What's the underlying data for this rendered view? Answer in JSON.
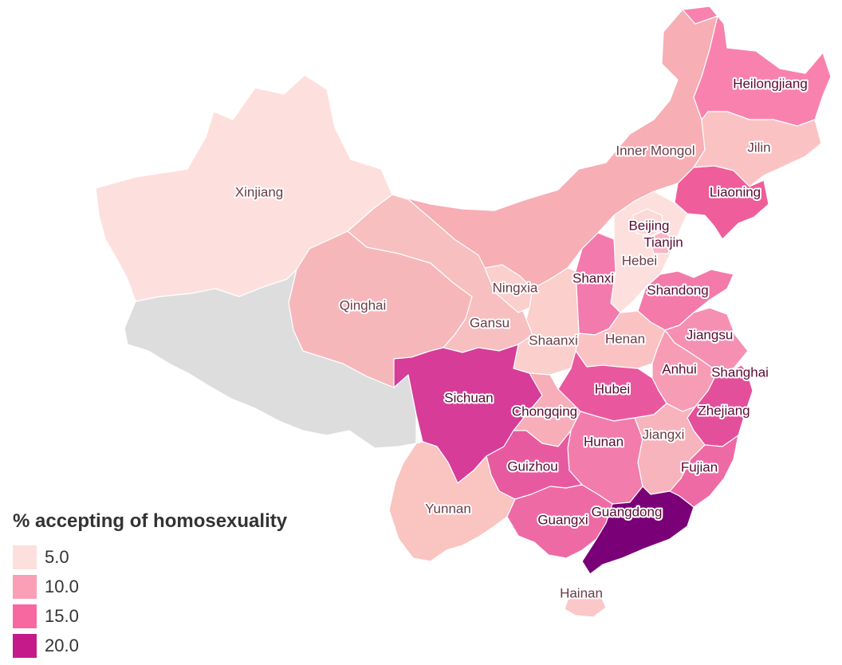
{
  "legend": {
    "title": "% accepting of homosexuality",
    "items": [
      {
        "label": "5.0",
        "color": "#fde0dd"
      },
      {
        "label": "10.0",
        "color": "#fa9fb5"
      },
      {
        "label": "15.0",
        "color": "#f768a1"
      },
      {
        "label": "20.0",
        "color": "#c51b8a"
      }
    ]
  },
  "no_data_color": "#dddddd",
  "provinces": [
    {
      "id": "xinjiang",
      "label": "Xinjiang",
      "color": "#fde0dd"
    },
    {
      "id": "tibet",
      "label": "",
      "color": "#dddddd"
    },
    {
      "id": "qinghai",
      "label": "Qinghai",
      "color": "#f6b7bb"
    },
    {
      "id": "gansu",
      "label": "Gansu",
      "color": "#f7bfc0"
    },
    {
      "id": "ningxia",
      "label": "Ningxia",
      "color": "#fbcfcc"
    },
    {
      "id": "inner-mongol",
      "label": "Inner Mongol",
      "color": "#f7aeb4"
    },
    {
      "id": "heilongjiang",
      "label": "Heilongjiang",
      "color": "#f882ad"
    },
    {
      "id": "jilin",
      "label": "Jilin",
      "color": "#fbc2c4"
    },
    {
      "id": "liaoning",
      "label": "Liaoning",
      "color": "#ef5d9a"
    },
    {
      "id": "beijing",
      "label": "Beijing",
      "color": "#fcd8d6"
    },
    {
      "id": "tianjin",
      "label": "Tianjin",
      "color": "#fbb3c3"
    },
    {
      "id": "hebei",
      "label": "Hebei",
      "color": "#fde0dd"
    },
    {
      "id": "shanxi",
      "label": "Shanxi",
      "color": "#f27aad"
    },
    {
      "id": "shandong",
      "label": "Shandong",
      "color": "#f47aa9"
    },
    {
      "id": "henan",
      "label": "Henan",
      "color": "#fbc2c4"
    },
    {
      "id": "shaanxi",
      "label": "Shaanxi",
      "color": "#fbcfcc"
    },
    {
      "id": "sichuan",
      "label": "Sichuan",
      "color": "#d63c98"
    },
    {
      "id": "chongqing",
      "label": "Chongqing",
      "color": "#f7aeb8"
    },
    {
      "id": "hubei",
      "label": "Hubei",
      "color": "#e9589f"
    },
    {
      "id": "anhui",
      "label": "Anhui",
      "color": "#f79cb5"
    },
    {
      "id": "jiangsu",
      "label": "Jiangsu",
      "color": "#f590b3"
    },
    {
      "id": "shanghai",
      "label": "Shanghai",
      "color": "#e9589f"
    },
    {
      "id": "zhejiang",
      "label": "Zhejiang",
      "color": "#e44f9c"
    },
    {
      "id": "jiangxi",
      "label": "Jiangxi",
      "color": "#f8b4bc"
    },
    {
      "id": "hunan",
      "label": "Hunan",
      "color": "#f27cab"
    },
    {
      "id": "guizhou",
      "label": "Guizhou",
      "color": "#e85aa0"
    },
    {
      "id": "yunnan",
      "label": "Yunnan",
      "color": "#fac4c0"
    },
    {
      "id": "guangxi",
      "label": "Guangxi",
      "color": "#ee6aa5"
    },
    {
      "id": "fujian",
      "label": "Fujian",
      "color": "#ee6aa5"
    },
    {
      "id": "guangdong",
      "label": "Guangdong",
      "color": "#7a0078"
    },
    {
      "id": "hainan",
      "label": "Hainan",
      "color": "#fbc7c8"
    }
  ]
}
